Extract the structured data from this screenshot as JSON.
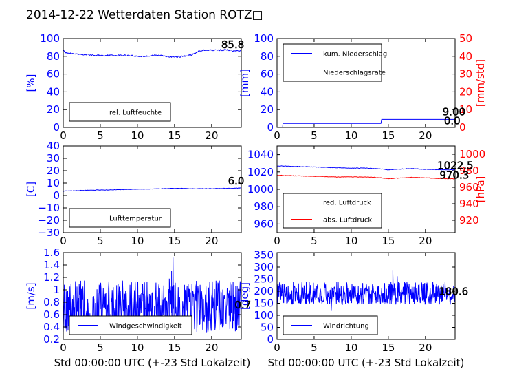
{
  "title": "2014-12-22 Wetterdaten Station ROTZ□",
  "colors": {
    "primary": "#0000ff",
    "secondary": "#ff0000",
    "frame": "#000000",
    "legend_border": "#000000"
  },
  "chart_data": [
    {
      "type": "line",
      "id": "humidity",
      "xlim": [
        0,
        24
      ],
      "ylim": [
        0,
        100
      ],
      "yticks": [
        0,
        20,
        40,
        60,
        80,
        100
      ],
      "ylabel": "[%]",
      "legend_position": "lower-left",
      "series": [
        {
          "name": "rel. Luftfeuchte",
          "color": "#0000ff",
          "axis": "left",
          "x": [
            0,
            0.3,
            1,
            2,
            3,
            4,
            5,
            6,
            7,
            8,
            9,
            10,
            11,
            12,
            13,
            14,
            15,
            16,
            17,
            17.8,
            18.3,
            19,
            20,
            21,
            22,
            23,
            24
          ],
          "y": [
            88,
            84,
            83,
            82,
            82,
            81,
            81,
            81,
            81,
            81,
            81,
            80,
            80,
            81,
            81,
            80,
            79,
            80,
            81,
            83,
            86,
            87,
            87,
            87,
            87,
            86,
            86
          ],
          "noise": 0.8
        }
      ],
      "value_labels": [
        {
          "text": "85.8",
          "x": 21.3,
          "y": 89
        }
      ]
    },
    {
      "type": "line",
      "id": "precipitation",
      "xlim": [
        0,
        24
      ],
      "ylim": [
        0,
        100
      ],
      "y2lim": [
        0,
        50
      ],
      "yticks": [
        0,
        20,
        40,
        60,
        80,
        100
      ],
      "y2ticks": [
        0,
        10,
        20,
        30,
        40,
        50
      ],
      "ylabel": "[mm]",
      "y2label": "[mm/std]",
      "legend_position": "upper-left",
      "series": [
        {
          "name": "kum. Niederschlag",
          "color": "#0000ff",
          "axis": "left",
          "x": [
            0,
            0.75,
            0.8,
            14.0,
            14.1,
            24
          ],
          "y": [
            0,
            0,
            4.5,
            4.5,
            9,
            9
          ],
          "noise": 0
        },
        {
          "name": "Niederschlagsrate",
          "color": "#ff0000",
          "axis": "right",
          "x": [
            0,
            24
          ],
          "y": [
            0,
            0
          ],
          "noise": 0
        }
      ],
      "value_labels": [
        {
          "text": "9.00",
          "x": 22.3,
          "y": 13.5
        },
        {
          "text": "0.0",
          "x": 22.5,
          "y": 3.5
        }
      ]
    },
    {
      "type": "line",
      "id": "temperature",
      "xlim": [
        0,
        24
      ],
      "ylim": [
        -30,
        40
      ],
      "yticks": [
        -30,
        -20,
        -10,
        0,
        10,
        20,
        30,
        40
      ],
      "ylabel": "[C]",
      "legend_position": "lower-left",
      "series": [
        {
          "name": "Lufttemperatur",
          "color": "#0000ff",
          "axis": "left",
          "x": [
            0,
            2,
            4,
            6,
            8,
            10,
            12,
            14,
            16,
            18,
            20,
            22,
            24
          ],
          "y": [
            3.5,
            4,
            4.3,
            4.5,
            4.8,
            5,
            5.3,
            5.6,
            5.7,
            5.5,
            5.5,
            5.8,
            6
          ],
          "noise": 0.2
        }
      ],
      "value_labels": [
        {
          "text": "6.0",
          "x": 22.2,
          "y": 9
        }
      ]
    },
    {
      "type": "line",
      "id": "pressure",
      "xlim": [
        0,
        24
      ],
      "ylim": [
        950,
        1050
      ],
      "y2lim": [
        905,
        1010
      ],
      "yticks": [
        960,
        980,
        1000,
        1020,
        1040
      ],
      "y2ticks": [
        920,
        940,
        960,
        980,
        1000
      ],
      "ylabel": "",
      "y2label": "[hPa]",
      "legend_position": "lower-left",
      "series": [
        {
          "name": "red. Luftdruck",
          "color": "#0000ff",
          "axis": "left",
          "x": [
            0,
            2,
            4,
            6,
            8,
            10,
            12,
            14,
            15,
            16,
            18,
            20,
            22,
            24
          ],
          "y": [
            1027,
            1026.5,
            1026,
            1025.5,
            1025,
            1024.5,
            1024.5,
            1023.5,
            1022.5,
            1023,
            1024,
            1023,
            1022.5,
            1022.5
          ],
          "noise": 0.3
        },
        {
          "name": "abs. Luftdruck",
          "color": "#ff0000",
          "axis": "right",
          "x": [
            0,
            2,
            4,
            6,
            8,
            10,
            12,
            14,
            15,
            16,
            18,
            20,
            22,
            24
          ],
          "y": [
            974.5,
            974,
            973.5,
            973,
            972.5,
            972.5,
            972.5,
            971.5,
            970.5,
            971,
            972,
            971.5,
            970.5,
            970.3
          ],
          "noise": 0.3
        }
      ],
      "value_labels": [
        {
          "text": "1022.5",
          "x": 21.6,
          "y": 1023.5
        },
        {
          "text": "970.3",
          "x": 21.9,
          "y": 1012.5
        }
      ]
    },
    {
      "type": "line",
      "id": "wind_speed",
      "xlim": [
        0,
        24
      ],
      "ylim": [
        0.2,
        1.6
      ],
      "yticks": [
        0.2,
        0.4,
        0.6,
        0.8,
        1.0,
        1.2,
        1.4,
        1.6
      ],
      "ylabel": "[m/s]",
      "legend_position": "lower-left",
      "series": [
        {
          "name": "Windgeschwindigkeit",
          "color": "#0000ff",
          "axis": "left",
          "x": [
            0,
            24
          ],
          "y": [
            0.65,
            0.65
          ],
          "range": [
            0.3,
            1.15
          ],
          "samples": 480,
          "spikes": [
            {
              "x": 14.8,
              "y": 1.52
            },
            {
              "x": 14.6,
              "y": 1.3
            },
            {
              "x": 22.5,
              "y": 1.12
            },
            {
              "x": 14.3,
              "y": 1.18
            }
          ]
        }
      ],
      "value_labels": [
        {
          "text": "0.7",
          "x": 23.1,
          "y": 0.7
        }
      ]
    },
    {
      "type": "line",
      "id": "wind_direction",
      "xlim": [
        0,
        24
      ],
      "ylim": [
        0,
        360
      ],
      "yticks": [
        0,
        50,
        100,
        150,
        200,
        250,
        300,
        350
      ],
      "ylabel": "[deg]",
      "legend_position": "lower-left",
      "series": [
        {
          "name": "Windrichtung",
          "color": "#0000ff",
          "axis": "left",
          "x": [
            0,
            24
          ],
          "y": [
            190,
            190
          ],
          "range": [
            145,
            240
          ],
          "samples": 480,
          "spikes": [
            {
              "x": 15.6,
              "y": 288
            },
            {
              "x": 7.3,
              "y": 118
            },
            {
              "x": 16.2,
              "y": 262
            }
          ]
        }
      ],
      "value_labels": [
        {
          "text": "180.6",
          "x": 21.8,
          "y": 184
        }
      ]
    }
  ],
  "x_axis": {
    "ticks": [
      0,
      5,
      10,
      15,
      20
    ],
    "label": "Std 00:00:00 UTC (+-23 Std Lokalzeit)"
  }
}
